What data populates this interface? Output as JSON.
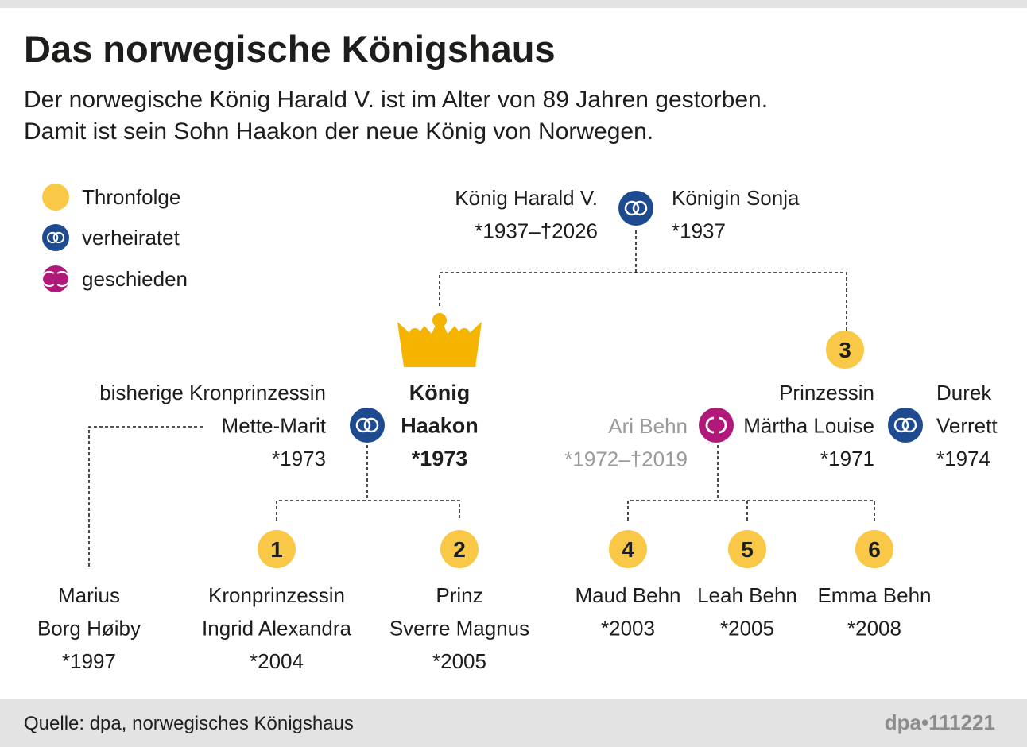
{
  "header": {
    "title": "Das norwegische Königshaus",
    "subtitle": [
      "Der norwegische König Harald V. ist im Alter von 89 Jahren gestorben.",
      "Damit ist sein Sohn Haakon der neue König von Norwegen."
    ]
  },
  "legend": [
    {
      "label": "Thronfolge"
    },
    {
      "label": "verheiratet"
    },
    {
      "label": "geschieden"
    }
  ],
  "nodes": [
    {
      "lines": [
        "König Harald V.",
        "*1937–†2026"
      ]
    },
    {
      "lines": [
        "Königin Sonja",
        "*1937"
      ]
    },
    {
      "lines": [
        "König",
        "Haakon",
        "*1973"
      ]
    },
    {
      "lines": [
        "bisherige Kronprinzessin",
        "Mette-Marit",
        "*1973"
      ]
    },
    {
      "lines": [
        "Prinzessin",
        "Märtha Louise",
        "*1971"
      ],
      "rank": 3
    },
    {
      "lines": [
        "Ari Behn",
        "*1972–†2019"
      ]
    },
    {
      "lines": [
        "Durek",
        "Verrett",
        "*1974"
      ]
    },
    {
      "lines": [
        "Marius",
        "Borg Høiby",
        "*1997"
      ]
    },
    {
      "lines": [
        "Kronprinzessin",
        "Ingrid Alexandra",
        "*2004"
      ],
      "rank": 1
    },
    {
      "lines": [
        "Prinz",
        "Sverre Magnus",
        "*2005"
      ],
      "rank": 2
    },
    {
      "lines": [
        "Maud Behn",
        "*2003"
      ],
      "rank": 4
    },
    {
      "lines": [
        "Leah Behn",
        "*2005"
      ],
      "rank": 5
    },
    {
      "lines": [
        "Emma Behn",
        "*2008"
      ],
      "rank": 6
    }
  ],
  "footer": {
    "source": "Quelle: dpa, norwegisches Königshaus",
    "id": "dpa•111221"
  }
}
